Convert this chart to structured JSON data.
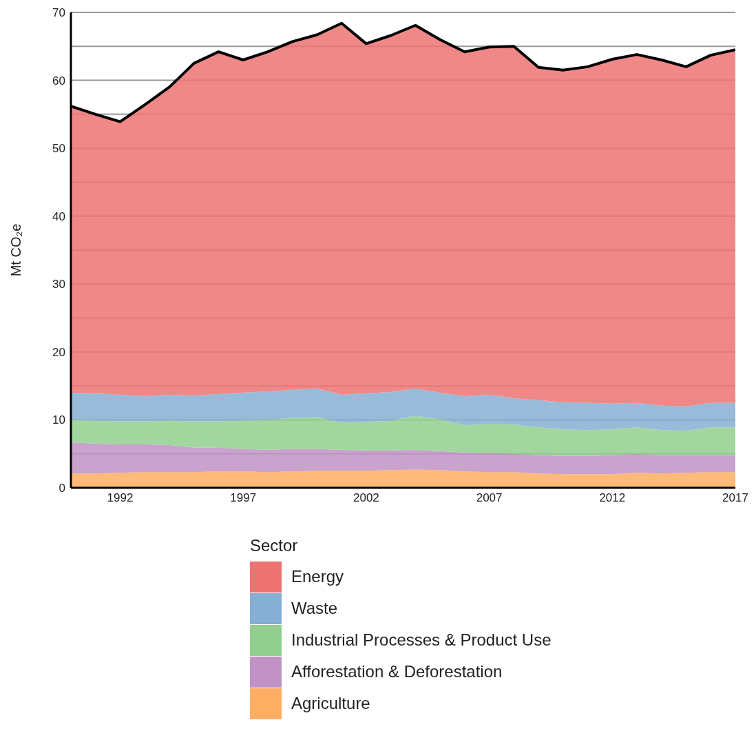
{
  "chart_data": {
    "type": "area",
    "stacked": true,
    "ylabel": "Mt CO₂e",
    "legend_title": "Sector",
    "legend": "bottom",
    "grid": "y",
    "x": [
      1990,
      1991,
      1992,
      1993,
      1994,
      1995,
      1996,
      1997,
      1998,
      1999,
      2000,
      2001,
      2002,
      2003,
      2004,
      2005,
      2006,
      2007,
      2008,
      2009,
      2010,
      2011,
      2012,
      2013,
      2014,
      2015,
      2016,
      2017
    ],
    "xlim": [
      1990,
      2017
    ],
    "xticks": [
      1992,
      1997,
      2002,
      2007,
      2012,
      2017
    ],
    "ylim": [
      0,
      70
    ],
    "yticks": [
      0,
      {
        "value": 5,
        "label": null
      },
      10,
      {
        "value": 15,
        "label": null
      },
      20,
      {
        "value": 25,
        "label": null
      },
      30,
      {
        "value": 35,
        "label": null
      },
      40,
      {
        "value": 45,
        "label": null
      },
      50,
      {
        "value": 55,
        "label": null
      },
      60,
      {
        "value": 65,
        "label": null
      },
      70
    ],
    "series": [
      {
        "name": "Agriculture",
        "color": "#fdae62",
        "values": [
          2.1,
          2.1,
          2.2,
          2.3,
          2.3,
          2.3,
          2.4,
          2.4,
          2.3,
          2.4,
          2.5,
          2.5,
          2.5,
          2.6,
          2.7,
          2.6,
          2.4,
          2.3,
          2.3,
          2.1,
          2.0,
          2.0,
          2.0,
          2.2,
          2.1,
          2.2,
          2.3,
          2.3
        ]
      },
      {
        "name": "Afforestation & Deforestation",
        "color": "#c192c6",
        "values": [
          4.6,
          4.4,
          4.2,
          4.1,
          4.0,
          3.6,
          3.5,
          3.3,
          3.3,
          3.3,
          3.2,
          3.1,
          3.0,
          2.9,
          2.9,
          2.8,
          2.8,
          2.8,
          2.7,
          2.7,
          2.7,
          2.7,
          2.8,
          2.8,
          2.7,
          2.6,
          2.5,
          2.5
        ]
      },
      {
        "name": "Industrial Processes & Product Use",
        "color": "#92cf8e",
        "values": [
          3.3,
          3.4,
          3.4,
          3.4,
          3.6,
          3.9,
          3.9,
          4.2,
          4.4,
          4.6,
          4.7,
          4.0,
          4.2,
          4.4,
          5.0,
          4.7,
          4.0,
          4.3,
          4.3,
          4.1,
          3.9,
          3.8,
          3.8,
          3.9,
          3.7,
          3.6,
          4.1,
          4.1
        ]
      },
      {
        "name": "Waste",
        "color": "#86afd3",
        "values": [
          4.0,
          4.0,
          3.9,
          3.7,
          3.8,
          3.8,
          4.0,
          4.1,
          4.2,
          4.1,
          4.2,
          4.1,
          4.2,
          4.2,
          4.0,
          3.9,
          4.3,
          4.3,
          3.9,
          4.0,
          4.0,
          4.0,
          3.8,
          3.6,
          3.6,
          3.6,
          3.6,
          3.6
        ]
      },
      {
        "name": "Energy",
        "color": "#ed7373",
        "values": [
          42.2,
          41.1,
          40.2,
          42.9,
          45.3,
          48.9,
          50.4,
          49.0,
          50.0,
          51.3,
          52.1,
          54.7,
          51.5,
          52.5,
          53.5,
          52.0,
          50.7,
          51.2,
          51.8,
          49.0,
          48.9,
          49.5,
          50.7,
          51.3,
          50.9,
          50.0,
          51.2,
          52.0
        ]
      }
    ]
  }
}
